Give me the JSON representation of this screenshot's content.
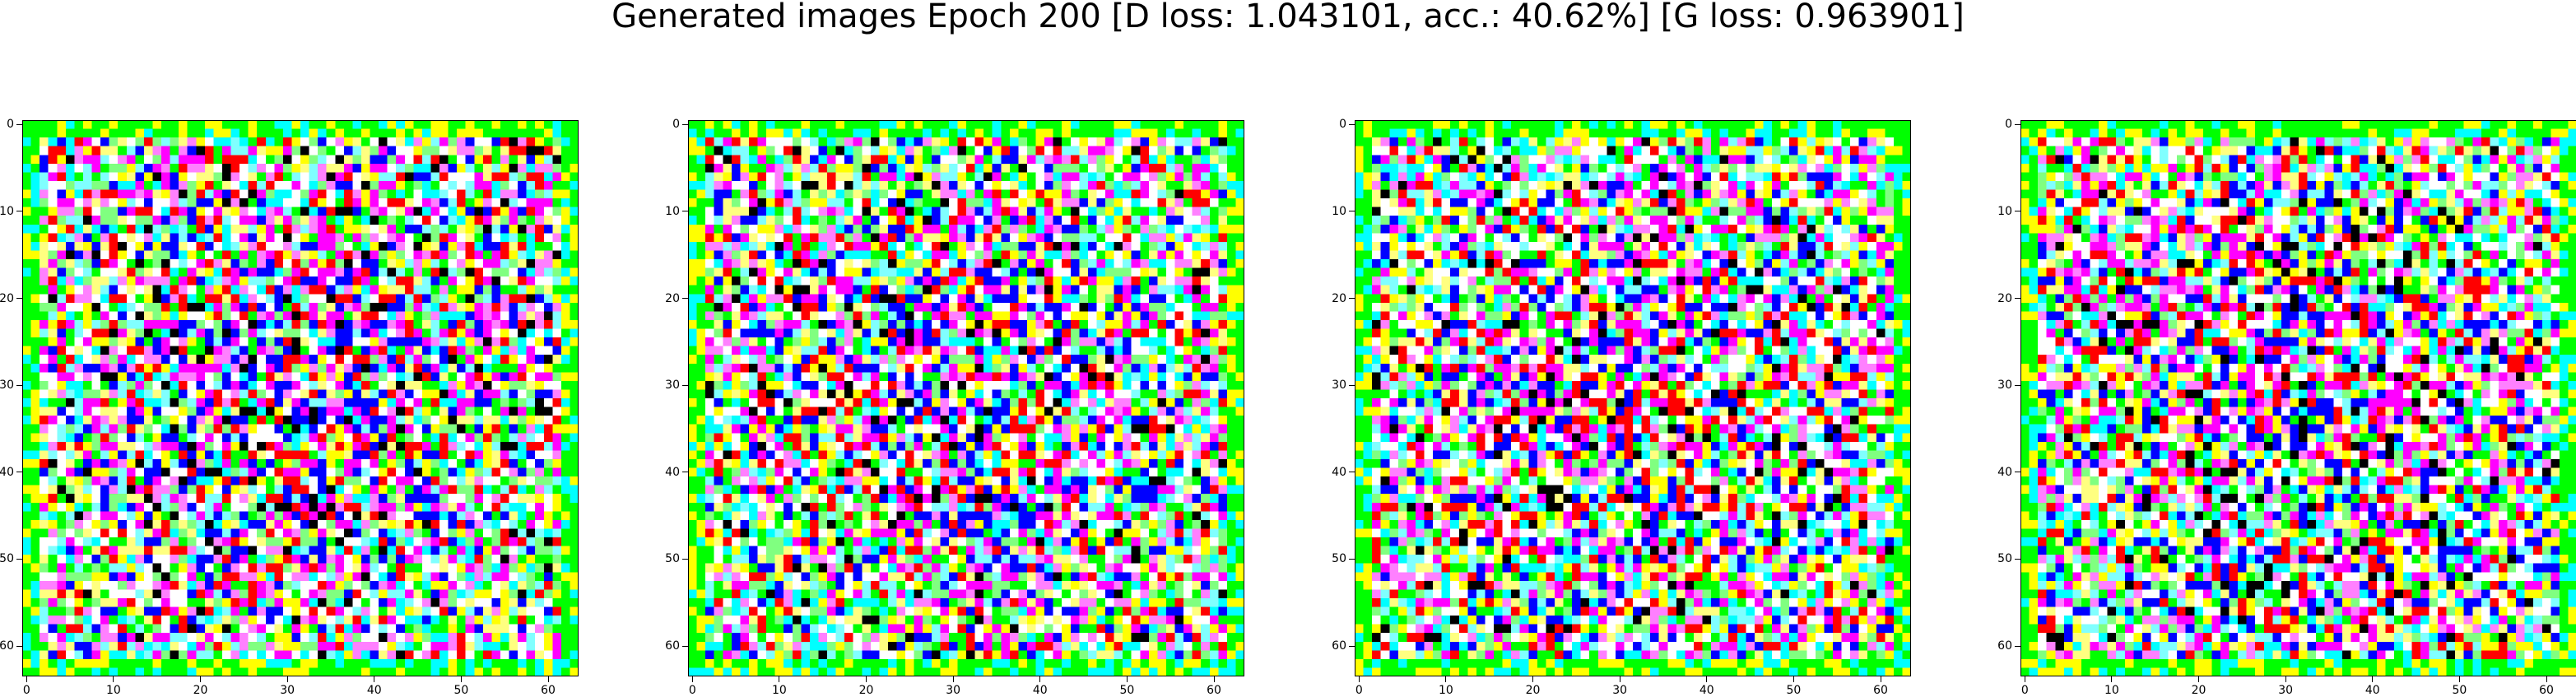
{
  "title": "Generated images Epoch 200 [D loss: 1.043101, acc.: 40.62%] [G loss: 0.963901]",
  "chart_data": {
    "type": "heatmap",
    "description_free": true,
    "grid_size": 64,
    "x_ticks": [
      0,
      10,
      20,
      30,
      40,
      50,
      60
    ],
    "y_ticks": [
      0,
      10,
      20,
      30,
      40,
      50,
      60
    ],
    "xlim": [
      -0.5,
      63.5
    ],
    "ylim": [
      63.5,
      -0.5
    ],
    "palette": [
      "#00ff00",
      "#00ffff",
      "#ffff00",
      "#ffffff",
      "#ff00ff",
      "#0000ff",
      "#ff0000",
      "#000000",
      "#80ff80",
      "#ffff80",
      "#80ffff",
      "#ff80ff"
    ],
    "panels": [
      {
        "seed": 11
      },
      {
        "seed": 23
      },
      {
        "seed": 37
      },
      {
        "seed": 53
      }
    ]
  }
}
